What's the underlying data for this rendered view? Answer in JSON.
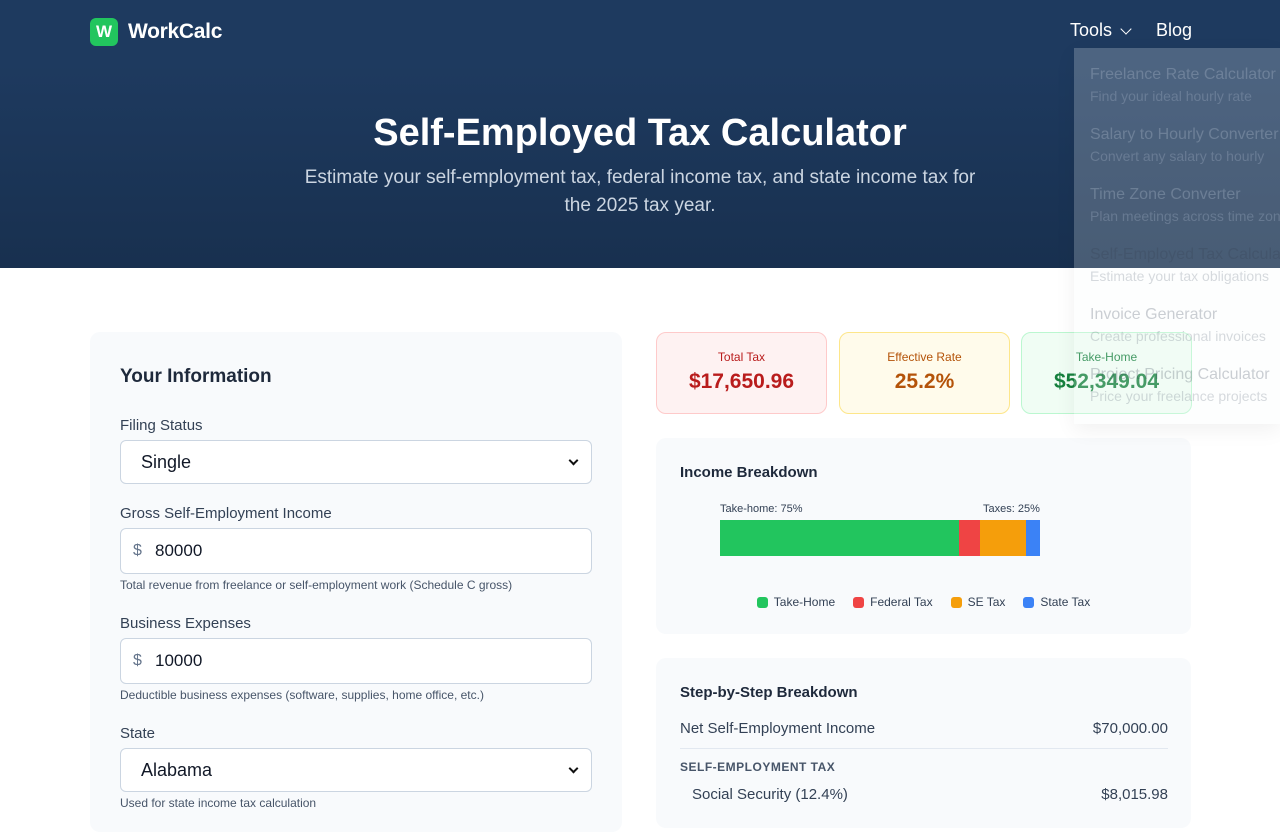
{
  "brand": {
    "logo_letter": "W",
    "name": "WorkCalc",
    "logo_color": "#22c55e"
  },
  "nav": {
    "tools_label": "Tools",
    "blog_label": "Blog"
  },
  "hero": {
    "title": "Self-Employed Tax Calculator",
    "subtitle": "Estimate your self-employment tax, federal income tax, and state income tax for the 2025 tax year."
  },
  "tools_menu": [
    {
      "title": "Freelance Rate Calculator",
      "desc": "Find your ideal hourly rate"
    },
    {
      "title": "Salary to Hourly Converter",
      "desc": "Convert any salary to hourly"
    },
    {
      "title": "Time Zone Converter",
      "desc": "Plan meetings across time zones"
    },
    {
      "title": "Self-Employed Tax Calculator",
      "desc": "Estimate your tax obligations"
    },
    {
      "title": "Invoice Generator",
      "desc": "Create professional invoices"
    },
    {
      "title": "Project Pricing Calculator",
      "desc": "Price your freelance projects"
    }
  ],
  "form": {
    "title": "Your Information",
    "filing_status": {
      "label": "Filing Status",
      "value": "Single"
    },
    "gross_income": {
      "label": "Gross Self-Employment Income",
      "currency": "$",
      "value": "80000",
      "help": "Total revenue from freelance or self-employment work (Schedule C gross)"
    },
    "expenses": {
      "label": "Business Expenses",
      "currency": "$",
      "value": "10000",
      "help": "Deductible business expenses (software, supplies, home office, etc.)"
    },
    "state": {
      "label": "State",
      "value": "Alabama",
      "help": "Used for state income tax calculation"
    }
  },
  "stats": {
    "total_tax": {
      "label": "Total Tax",
      "value": "$17,650.96"
    },
    "effective_rate": {
      "label": "Effective Rate",
      "value": "25.2%"
    },
    "take_home": {
      "label": "Take-Home",
      "value": "$52,349.04"
    }
  },
  "breakdown": {
    "title": "Income Breakdown",
    "take_home_label": "Take-home: 75%",
    "taxes_label": "Taxes: 25%",
    "segments": [
      {
        "name": "Take-Home",
        "share": 0.748,
        "color": "#22c55e"
      },
      {
        "name": "Federal Tax",
        "share": 0.066,
        "color": "#ef4444"
      },
      {
        "name": "SE Tax",
        "share": 0.142,
        "color": "#f59e0b"
      },
      {
        "name": "State Tax",
        "share": 0.044,
        "color": "#3b82f6"
      }
    ]
  },
  "steps": {
    "title": "Step-by-Step Breakdown",
    "net_income_label": "Net Self-Employment Income",
    "net_income_value": "$70,000.00",
    "se_section": "SELF-EMPLOYMENT TAX",
    "social_security_label": "Social Security (12.4%)",
    "social_security_value": "$8,015.98"
  }
}
